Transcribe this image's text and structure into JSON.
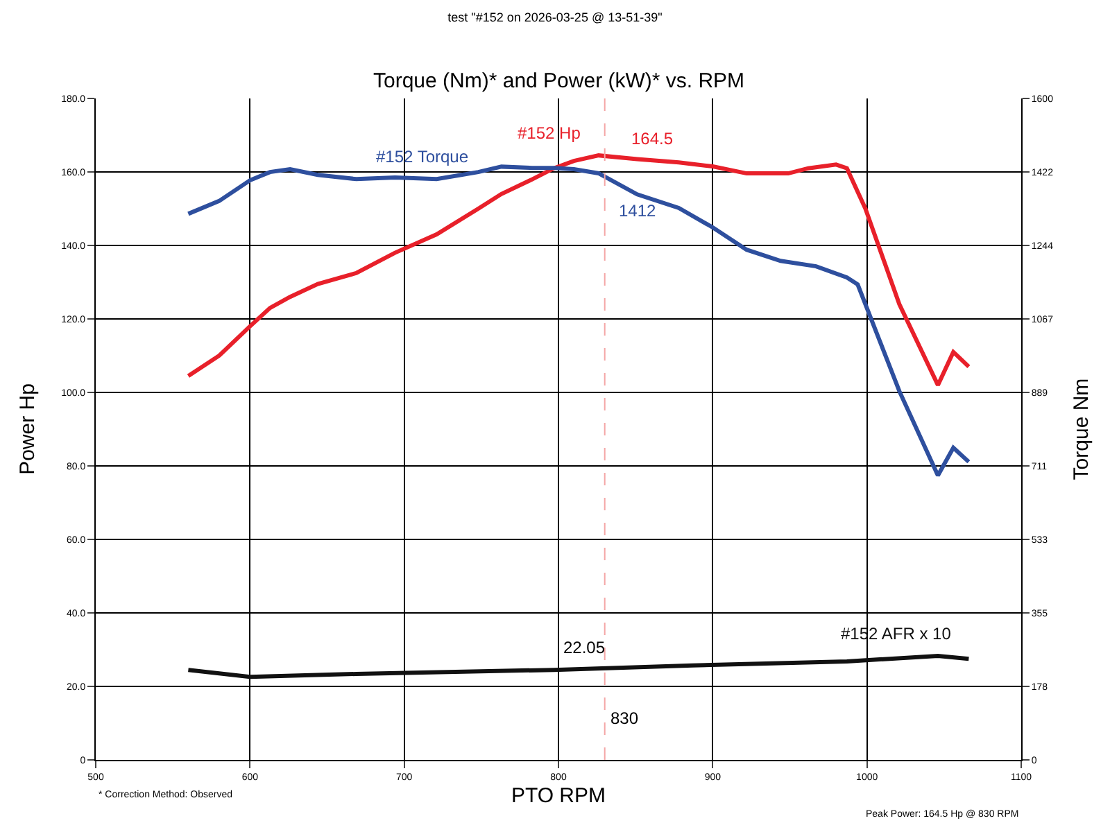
{
  "chart_data": {
    "type": "line",
    "title": "test \"#152 on 2026-03-25 @ 13-51-39\"",
    "subtitle": "Torque (Nm)* and Power (kW)* vs. RPM",
    "xlabel": "PTO RPM",
    "ylabel": "Power Hp",
    "y2label": "Torque Nm",
    "series": [
      {
        "name": "#152 Hp",
        "color": "#e8202a",
        "x": [
          560,
          580,
          600,
          613,
          626,
          644,
          669,
          694,
          721,
          748,
          763,
          783,
          797,
          810,
          826,
          851,
          878,
          900,
          922,
          949,
          962,
          980,
          987,
          999,
          1021,
          1046,
          1056,
          1066
        ],
        "values": [
          104.5,
          110,
          118,
          123,
          126,
          129.5,
          132.5,
          138,
          143,
          150,
          154,
          158,
          161,
          163,
          164.5,
          163.5,
          162.6,
          161.5,
          159.6,
          159.6,
          161,
          162,
          161,
          150,
          124,
          102,
          111,
          107
        ]
      },
      {
        "name": "#152 Torque",
        "color": "#2e4f9e",
        "axis": "y2",
        "x": [
          560,
          580,
          600,
          613,
          626,
          644,
          669,
          694,
          721,
          748,
          763,
          783,
          797,
          810,
          826,
          851,
          878,
          900,
          922,
          944,
          967,
          987,
          994,
          1021,
          1046,
          1056,
          1066
        ],
        "values": [
          1321,
          1352,
          1402,
          1422,
          1429,
          1415,
          1405,
          1409,
          1405,
          1422,
          1435,
          1432,
          1432,
          1429,
          1419,
          1368,
          1335,
          1288,
          1234,
          1207,
          1194,
          1167,
          1150,
          892,
          688,
          755,
          721
        ]
      },
      {
        "name": "#152 AFR x 10",
        "color": "#111111",
        "x": [
          560,
          600,
          669,
          797,
          887,
          987,
          1046,
          1066
        ],
        "values": [
          24.5,
          22.6,
          23.4,
          24.5,
          25.7,
          26.8,
          28.3,
          27.5
        ]
      }
    ],
    "annotations": [
      {
        "text": "164.5",
        "x": 830,
        "y": 164.5
      },
      "1412",
      "22.05",
      "* Correction Method: Observed",
      "Peak Power: 164.5 Hp @ 830 RPM"
    ],
    "ref_lines": [
      {
        "axis": "x",
        "value": 830,
        "label": "830",
        "color": "#f4a6a6",
        "line_style": "dashed"
      }
    ],
    "xlim": [
      500,
      1100
    ],
    "xticks": [
      500,
      600,
      700,
      800,
      900,
      1000,
      1100
    ],
    "ylim": [
      0,
      180
    ],
    "yticks": [
      0,
      {
        "value": 20,
        "label": "20.0"
      },
      {
        "value": 40,
        "label": "40.0"
      },
      {
        "value": 60,
        "label": "60.0"
      },
      {
        "value": 80,
        "label": "80.0"
      },
      {
        "value": 100,
        "label": "100.0"
      },
      {
        "value": 120,
        "label": "120.0"
      },
      {
        "value": 140,
        "label": "140.0"
      },
      {
        "value": 160,
        "label": "160.0"
      },
      {
        "value": 180,
        "label": "180.0"
      }
    ],
    "y2lim": [
      0,
      1600
    ],
    "y2ticks": [
      0,
      178,
      355,
      533,
      711,
      889,
      1067,
      1244,
      1422,
      1600
    ],
    "grid": true,
    "legend": false,
    "marker": "none",
    "line_style": "solid"
  }
}
